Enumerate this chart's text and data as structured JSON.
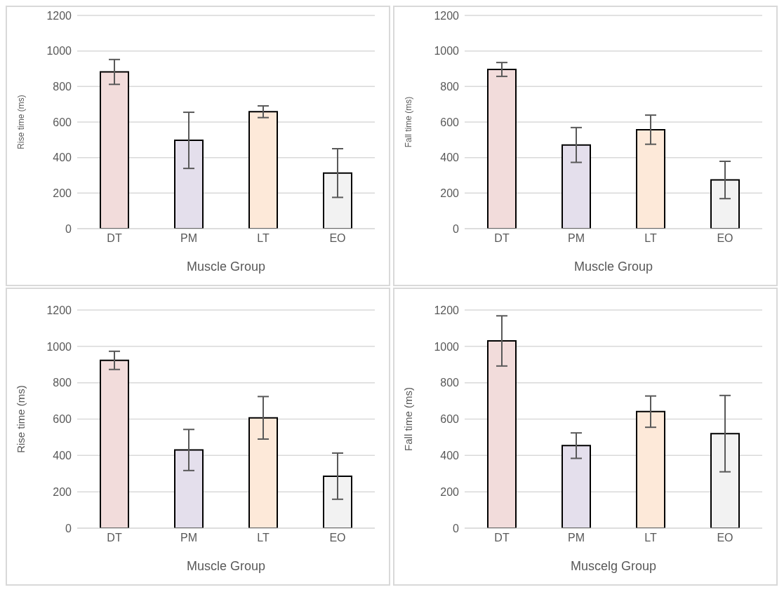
{
  "chart_data": [
    {
      "type": "bar",
      "xlabel": "Muscle Group",
      "ylabel": "Rise time (ms)",
      "categories": [
        "DT",
        "PM",
        "LT",
        "EO"
      ],
      "values": [
        882,
        497,
        658,
        313
      ],
      "errors": [
        70,
        158,
        33,
        137
      ],
      "colors": [
        "#f2dcdb",
        "#e4dfec",
        "#fde9d9",
        "#f2f2f2"
      ],
      "ylim": [
        0,
        1200
      ],
      "yticks": [
        0,
        200,
        400,
        600,
        800,
        1000,
        1200
      ],
      "grid": "y"
    },
    {
      "type": "bar",
      "xlabel": "Muscle Group",
      "ylabel": "Fall time (ms)",
      "categories": [
        "DT",
        "PM",
        "LT",
        "EO"
      ],
      "values": [
        896,
        471,
        557,
        274
      ],
      "errors": [
        39,
        98,
        82,
        105
      ],
      "colors": [
        "#f2dcdb",
        "#e4dfec",
        "#fde9d9",
        "#f2f2f2"
      ],
      "ylim": [
        0,
        1200
      ],
      "yticks": [
        0,
        200,
        400,
        600,
        800,
        1000,
        1200
      ],
      "grid": "y"
    },
    {
      "type": "bar",
      "xlabel": "Muscle Group",
      "ylabel": "Rise time (ms)",
      "categories": [
        "DT",
        "PM",
        "LT",
        "EO"
      ],
      "values": [
        923,
        430,
        607,
        286
      ],
      "errors": [
        50,
        113,
        117,
        127
      ],
      "colors": [
        "#f2dcdb",
        "#e4dfec",
        "#fde9d9",
        "#f2f2f2"
      ],
      "ylim": [
        0,
        1200
      ],
      "yticks": [
        0,
        200,
        400,
        600,
        800,
        1000,
        1200
      ],
      "grid": "y"
    },
    {
      "type": "bar",
      "xlabel": "Muscelg Group",
      "ylabel": "Fall time (ms)",
      "categories": [
        "DT",
        "PM",
        "LT",
        "EO"
      ],
      "values": [
        1030,
        454,
        641,
        520
      ],
      "errors": [
        138,
        70,
        86,
        210
      ],
      "colors": [
        "#f2dcdb",
        "#e4dfec",
        "#fde9d9",
        "#f2f2f2"
      ],
      "ylim": [
        0,
        1200
      ],
      "yticks": [
        0,
        200,
        400,
        600,
        800,
        1000,
        1200
      ],
      "grid": "y"
    }
  ]
}
